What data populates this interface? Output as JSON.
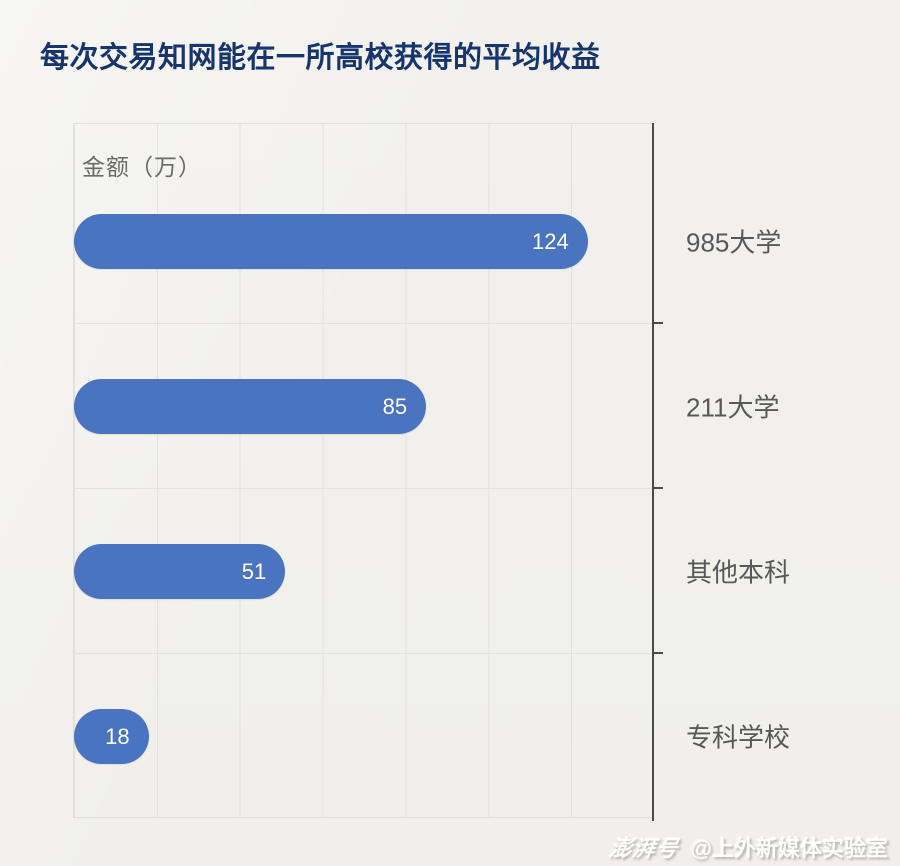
{
  "title": "每次交易知网能在一所高校获得的平均收益",
  "chart_data": {
    "type": "bar",
    "orientation": "horizontal",
    "title": "每次交易知网能在一所高校获得的平均收益",
    "value_axis_label": "金额（万）",
    "categories": [
      "985大学",
      "211大学",
      "其他本科",
      "专科学校"
    ],
    "values": [
      124,
      85,
      51,
      18
    ],
    "xlim": [
      0,
      140
    ],
    "grid_step": 20,
    "grid": true,
    "legend": "none",
    "bar_color": "#4a74bf",
    "value_label_color": "#ffffff"
  },
  "watermark": {
    "logo": "澎湃号",
    "account": "@上外新媒体实验室"
  },
  "colors": {
    "background": "#f2f1ee",
    "title": "#16356d",
    "bar": "#4a74bf",
    "gridline": "#e3e2df",
    "axis": "#4b4b4b",
    "category_label": "#57585a",
    "unit_label": "#6a6a6a"
  }
}
